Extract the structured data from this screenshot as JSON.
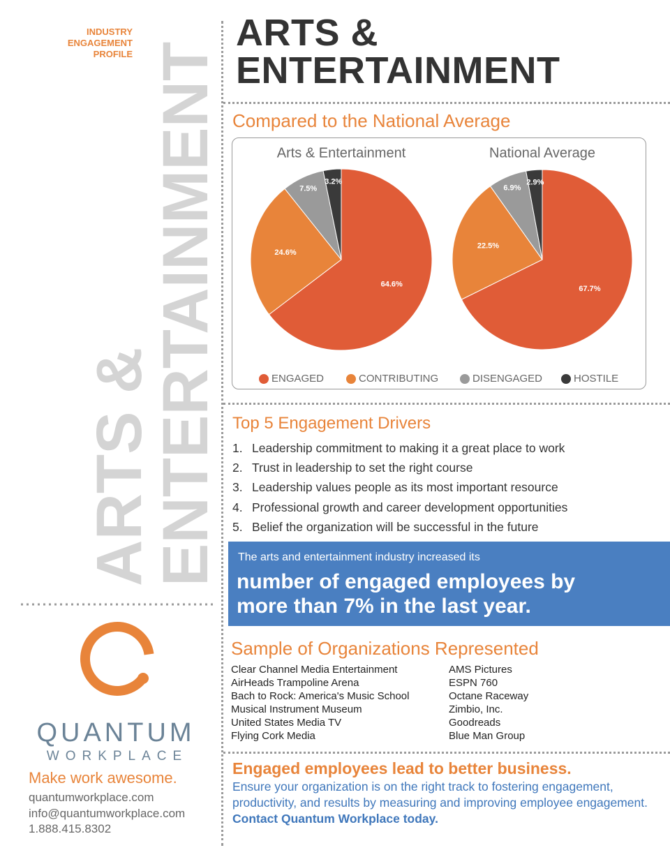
{
  "sidebar": {
    "profile_label": [
      "INDUSTRY",
      "ENGAGEMENT",
      "PROFILE"
    ],
    "vertical_title": [
      "ARTS &",
      "ENTERTAINMENT"
    ],
    "brand": {
      "name": "QUANTUM",
      "sub": "WORKPLACE"
    },
    "tagline": "Make work awesome.",
    "contacts": [
      "quantumworkplace.com",
      "info@quantumworkplace.com",
      "1.888.415.8302"
    ]
  },
  "header": {
    "title_lines": [
      "ARTS &",
      "ENTERTAINMENT"
    ]
  },
  "comparison": {
    "heading": "Compared to the National Average"
  },
  "chart_data": [
    {
      "type": "pie",
      "title": "Arts & Entertainment",
      "categories": [
        "ENGAGED",
        "CONTRIBUTING",
        "DISENGAGED",
        "HOSTILE"
      ],
      "values": [
        64.6,
        24.6,
        7.5,
        3.2
      ],
      "value_labels": [
        "64.6%",
        "24.6%",
        "7.5%",
        "3.2%"
      ],
      "colors": [
        "#e05c37",
        "#e8843a",
        "#9a9a9a",
        "#3a3a3a"
      ]
    },
    {
      "type": "pie",
      "title": "National Average",
      "categories": [
        "ENGAGED",
        "CONTRIBUTING",
        "DISENGAGED",
        "HOSTILE"
      ],
      "values": [
        67.7,
        22.5,
        6.9,
        2.9
      ],
      "value_labels": [
        "67.7%",
        "22.5%",
        "6.9%",
        "2.9%"
      ],
      "colors": [
        "#e05c37",
        "#e8843a",
        "#9a9a9a",
        "#3a3a3a"
      ]
    }
  ],
  "drivers": {
    "heading": "Top 5 Engagement Drivers",
    "items": [
      {
        "number": "1.",
        "text": "Leadership commitment to making it a great place to work"
      },
      {
        "number": "2.",
        "text": "Trust in leadership to set the right course"
      },
      {
        "number": "3.",
        "text": "Leadership values people as its most important resource"
      },
      {
        "number": "4.",
        "text": "Professional growth and career development opportunities"
      },
      {
        "number": "5.",
        "text": "Belief the organization will be successful in the future"
      }
    ]
  },
  "callout": {
    "intro": "The arts and entertainment industry increased its",
    "highlight": [
      "number of engaged employees by",
      "more than 7% in the last year."
    ]
  },
  "organizations": {
    "heading": "Sample of Organizations Represented",
    "columns": [
      [
        "Clear Channel Media Entertainment",
        "AirHeads Trampoline Arena",
        "Bach to Rock: America's Music School",
        "Musical Instrument Museum",
        "United States Media TV",
        "Flying Cork Media"
      ],
      [
        "AMS Pictures",
        "ESPN 760",
        "Octane Raceway",
        "Zimbio, Inc.",
        "Goodreads",
        "Blue Man Group"
      ]
    ]
  },
  "footer": {
    "heading": "Engaged employees lead to better business.",
    "body": "Ensure your organization is on the right track to fostering engagement, productivity, and results by measuring and improving employee engagement.",
    "link": "Contact Quantum Workplace today."
  }
}
